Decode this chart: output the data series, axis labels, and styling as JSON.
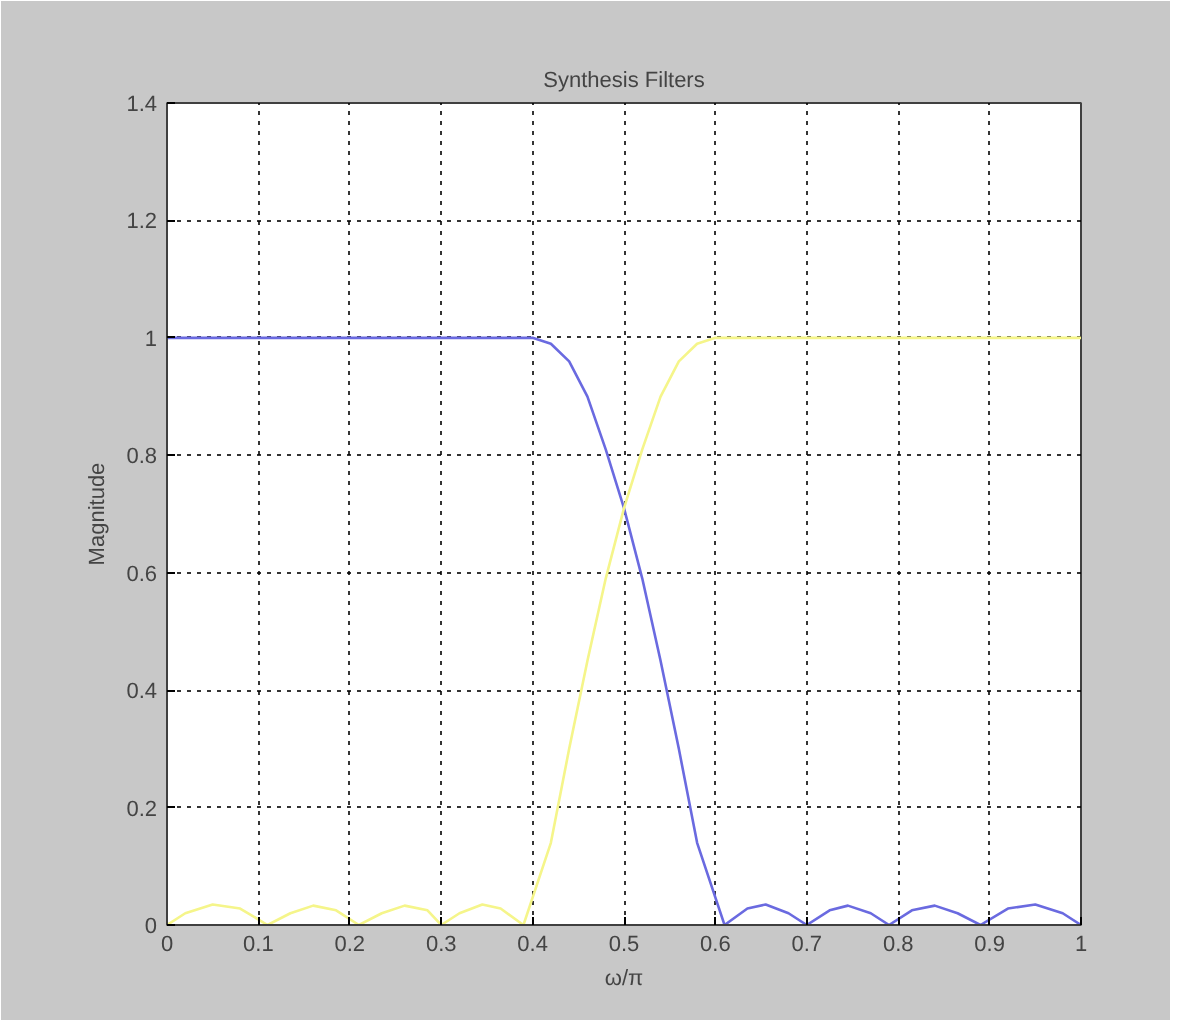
{
  "chart_data": {
    "type": "line",
    "title": "Synthesis Filters",
    "xlabel": "ω/π",
    "ylabel": "Magnitude",
    "xlim": [
      0,
      1
    ],
    "ylim": [
      0,
      1.4
    ],
    "xticks": [
      0,
      0.1,
      0.2,
      0.3,
      0.4,
      0.5,
      0.6,
      0.7,
      0.8,
      0.9,
      1
    ],
    "yticks": [
      0,
      0.2,
      0.4,
      0.6,
      0.8,
      1,
      1.2,
      1.4
    ],
    "grid": true,
    "line_style": "solid",
    "series": [
      {
        "color": "#6a6ae0",
        "x": [
          0,
          0.4,
          0.42,
          0.44,
          0.46,
          0.48,
          0.5,
          0.52,
          0.54,
          0.56,
          0.58,
          0.61,
          0.635,
          0.655,
          0.68,
          0.7,
          0.725,
          0.745,
          0.77,
          0.79,
          0.815,
          0.84,
          0.865,
          0.89,
          0.92,
          0.95,
          0.98,
          1.0
        ],
        "values": [
          1,
          1,
          0.99,
          0.96,
          0.9,
          0.81,
          0.71,
          0.59,
          0.45,
          0.3,
          0.14,
          0,
          0.028,
          0.035,
          0.02,
          0,
          0.025,
          0.033,
          0.02,
          0,
          0.025,
          0.033,
          0.02,
          0,
          0.028,
          0.035,
          0.02,
          0
        ]
      },
      {
        "color": "#f5f58a",
        "x": [
          0,
          0.02,
          0.05,
          0.08,
          0.11,
          0.135,
          0.16,
          0.185,
          0.21,
          0.235,
          0.26,
          0.285,
          0.3,
          0.32,
          0.345,
          0.365,
          0.39,
          0.42,
          0.44,
          0.46,
          0.48,
          0.5,
          0.52,
          0.54,
          0.56,
          0.58,
          0.6,
          1.0
        ],
        "values": [
          0,
          0.02,
          0.035,
          0.028,
          0,
          0.02,
          0.033,
          0.025,
          0,
          0.02,
          0.033,
          0.025,
          0,
          0.02,
          0.035,
          0.028,
          0,
          0.14,
          0.3,
          0.45,
          0.59,
          0.71,
          0.81,
          0.9,
          0.96,
          0.99,
          1,
          1
        ]
      }
    ]
  }
}
